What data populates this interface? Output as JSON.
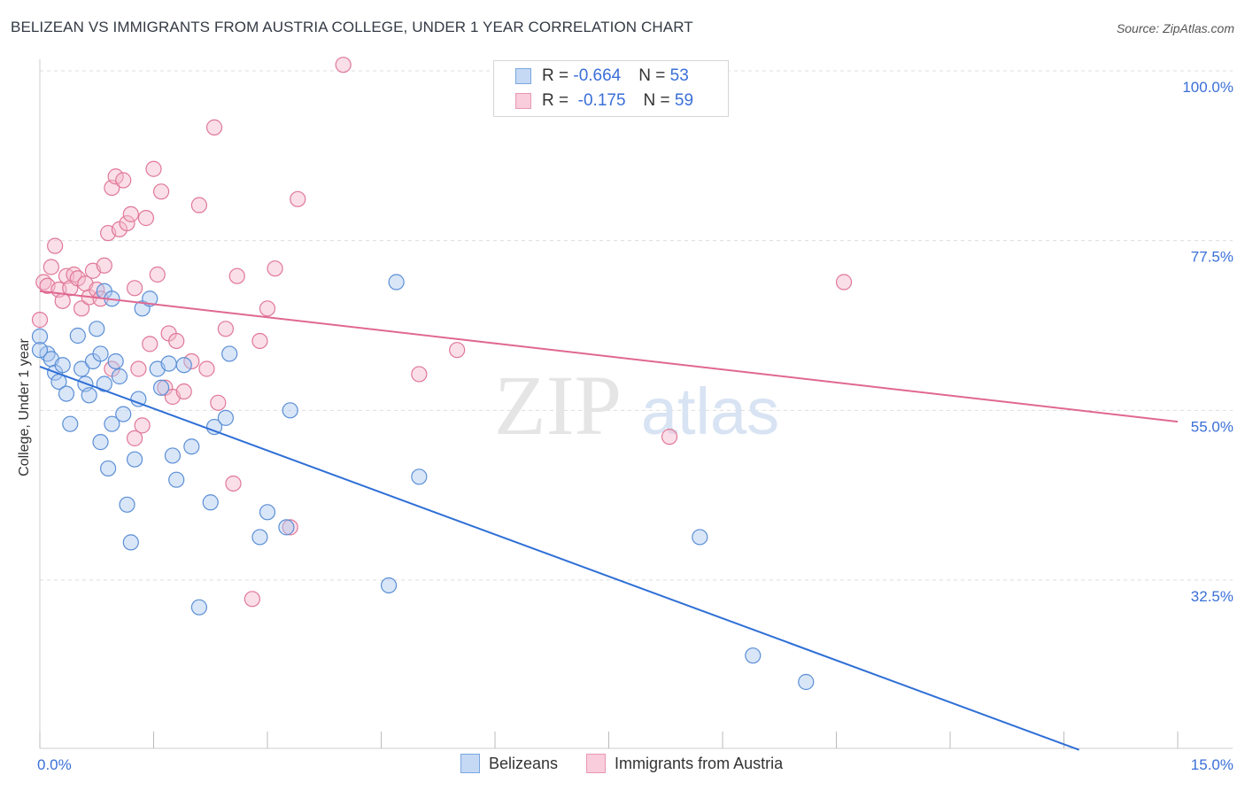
{
  "header": {
    "title": "BELIZEAN VS IMMIGRANTS FROM AUSTRIA COLLEGE, UNDER 1 YEAR CORRELATION CHART",
    "source": "Source: ZipAtlas.com"
  },
  "legend": {
    "rows": [
      {
        "r_label": "R = ",
        "r_value": "-0.664",
        "n_label": "N = ",
        "n_value": "53"
      },
      {
        "r_label": "R = ",
        "r_value": " -0.175",
        "n_label": "N = ",
        "n_value": "59"
      }
    ],
    "bottom": [
      "Belizeans",
      "Immigrants from Austria"
    ]
  },
  "watermark": {
    "zip": "ZIP",
    "atlas": "atlas"
  },
  "colors": {
    "blue_fill": "#aac8f0",
    "blue_stroke": "#5b8fd6",
    "blue_line": "#2f6fd6",
    "pink_fill": "#f5b8cc",
    "pink_stroke": "#e07898",
    "pink_line": "#e06890",
    "tick_text": "#3a6fd8"
  },
  "chart_data": {
    "type": "scatter",
    "title": "BELIZEAN VS IMMIGRANTS FROM AUSTRIA COLLEGE, UNDER 1 YEAR CORRELATION CHART",
    "xlabel": "",
    "ylabel": "College, Under 1 year",
    "xlim": [
      0,
      15
    ],
    "ylim": [
      10,
      105
    ],
    "x_tick_labels": [
      {
        "value": 0,
        "label": "0.0%"
      },
      {
        "value": 15,
        "label": "15.0%"
      }
    ],
    "x_ticks": [
      0,
      1.5,
      3,
      4.5,
      6,
      7.5,
      9,
      10.5,
      12,
      13.5,
      15
    ],
    "y_ticks": [
      {
        "value": 32.5,
        "label": "32.5%"
      },
      {
        "value": 55.0,
        "label": "55.0%"
      },
      {
        "value": 77.5,
        "label": "77.5%"
      },
      {
        "value": 100.0,
        "label": "100.0%"
      }
    ],
    "series": [
      {
        "name": "Belizeans",
        "r": -0.664,
        "n": 53,
        "trend": {
          "x0": 0,
          "y0": 60.8,
          "x1": 13.7,
          "y1": 10
        },
        "points": [
          [
            0.0,
            64.8
          ],
          [
            0.1,
            62.5
          ],
          [
            0.15,
            61.8
          ],
          [
            0.2,
            60.0
          ],
          [
            0.25,
            58.8
          ],
          [
            0.35,
            57.2
          ],
          [
            0.4,
            53.2
          ],
          [
            0.5,
            64.9
          ],
          [
            0.55,
            60.5
          ],
          [
            0.6,
            58.5
          ],
          [
            0.65,
            57.0
          ],
          [
            0.7,
            61.5
          ],
          [
            0.75,
            65.8
          ],
          [
            0.8,
            62.5
          ],
          [
            0.85,
            58.5
          ],
          [
            0.8,
            50.8
          ],
          [
            0.9,
            47.3
          ],
          [
            0.95,
            53.2
          ],
          [
            1.0,
            61.5
          ],
          [
            1.05,
            59.5
          ],
          [
            1.1,
            54.5
          ],
          [
            1.15,
            42.5
          ],
          [
            1.2,
            37.5
          ],
          [
            1.25,
            48.5
          ],
          [
            1.3,
            56.5
          ],
          [
            0.85,
            70.8
          ],
          [
            0.95,
            69.8
          ],
          [
            1.35,
            68.5
          ],
          [
            1.45,
            69.8
          ],
          [
            1.55,
            60.5
          ],
          [
            1.6,
            58.0
          ],
          [
            1.7,
            61.2
          ],
          [
            1.75,
            49.0
          ],
          [
            1.8,
            45.8
          ],
          [
            1.9,
            61.0
          ],
          [
            2.0,
            50.2
          ],
          [
            2.1,
            28.9
          ],
          [
            2.25,
            42.8
          ],
          [
            2.3,
            52.8
          ],
          [
            2.45,
            54.0
          ],
          [
            2.5,
            62.5
          ],
          [
            2.9,
            38.2
          ],
          [
            3.0,
            41.5
          ],
          [
            3.25,
            39.5
          ],
          [
            3.3,
            55.0
          ],
          [
            4.6,
            31.8
          ],
          [
            4.7,
            72.0
          ],
          [
            5.0,
            46.2
          ],
          [
            8.7,
            38.2
          ],
          [
            9.4,
            22.5
          ],
          [
            10.1,
            19.0
          ],
          [
            0.0,
            63.0
          ],
          [
            0.3,
            61.0
          ]
        ]
      },
      {
        "name": "Immigrants from Austria",
        "r": -0.175,
        "n": 59,
        "trend": {
          "x0": 0,
          "y0": 70.8,
          "x1": 15,
          "y1": 53.5
        },
        "points": [
          [
            0.0,
            67.0
          ],
          [
            0.05,
            72.0
          ],
          [
            0.1,
            71.5
          ],
          [
            0.15,
            74.0
          ],
          [
            0.2,
            76.8
          ],
          [
            0.25,
            71.0
          ],
          [
            0.3,
            69.5
          ],
          [
            0.35,
            72.8
          ],
          [
            0.4,
            71.2
          ],
          [
            0.45,
            73.0
          ],
          [
            0.5,
            72.5
          ],
          [
            0.55,
            68.5
          ],
          [
            0.6,
            71.8
          ],
          [
            0.65,
            70.0
          ],
          [
            0.7,
            73.5
          ],
          [
            0.75,
            71.0
          ],
          [
            0.8,
            69.8
          ],
          [
            0.85,
            74.2
          ],
          [
            0.9,
            78.5
          ],
          [
            0.95,
            84.5
          ],
          [
            1.0,
            86.0
          ],
          [
            1.05,
            79.0
          ],
          [
            1.1,
            85.5
          ],
          [
            1.15,
            79.8
          ],
          [
            1.2,
            81.0
          ],
          [
            1.25,
            71.2
          ],
          [
            1.3,
            60.5
          ],
          [
            1.35,
            53.0
          ],
          [
            1.4,
            80.5
          ],
          [
            1.45,
            63.8
          ],
          [
            1.5,
            87.0
          ],
          [
            1.55,
            73.0
          ],
          [
            1.6,
            84.0
          ],
          [
            1.65,
            58.0
          ],
          [
            1.7,
            65.2
          ],
          [
            1.75,
            56.8
          ],
          [
            1.8,
            64.2
          ],
          [
            1.9,
            57.5
          ],
          [
            2.0,
            61.5
          ],
          [
            2.1,
            82.2
          ],
          [
            2.2,
            60.5
          ],
          [
            2.3,
            92.5
          ],
          [
            2.35,
            56.0
          ],
          [
            2.45,
            65.8
          ],
          [
            2.55,
            45.3
          ],
          [
            2.6,
            72.8
          ],
          [
            2.8,
            30.0
          ],
          [
            2.9,
            64.2
          ],
          [
            3.0,
            68.5
          ],
          [
            3.1,
            73.8
          ],
          [
            3.3,
            39.5
          ],
          [
            3.4,
            83.0
          ],
          [
            5.0,
            59.8
          ],
          [
            5.5,
            63.0
          ],
          [
            8.3,
            51.5
          ],
          [
            10.6,
            72.0
          ],
          [
            1.25,
            51.3
          ],
          [
            0.95,
            60.5
          ],
          [
            4.0,
            100.8
          ]
        ]
      }
    ],
    "legend_placement": "top-center",
    "grid": true
  }
}
